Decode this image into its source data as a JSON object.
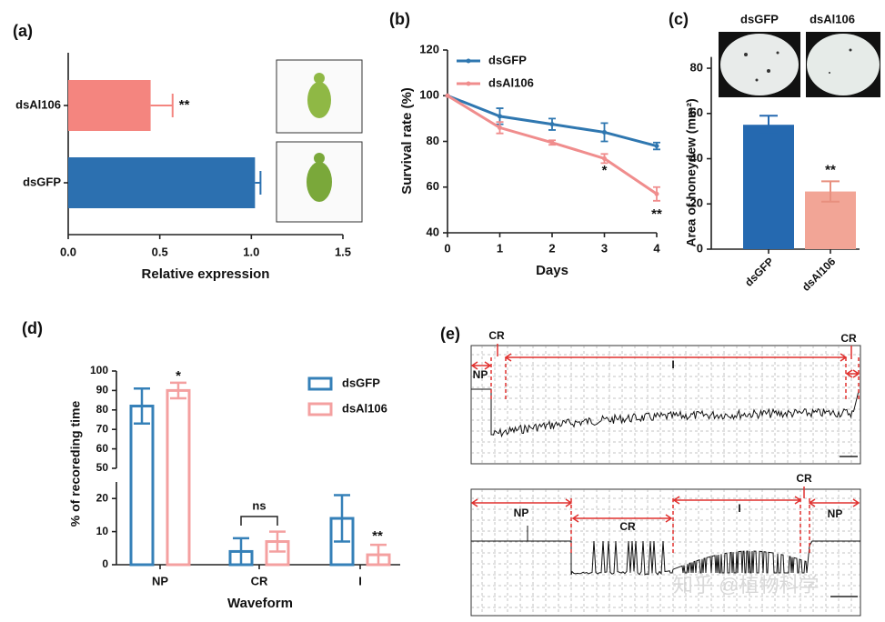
{
  "chart_data": [
    {
      "type": "barh",
      "panel_label": "(a)",
      "xlabel": "Relative expression",
      "categories": [
        "dsAl106",
        "dsGFP"
      ],
      "values": [
        0.45,
        1.02
      ],
      "errors": [
        0.12,
        0.03
      ],
      "colors": [
        "#f4857f",
        "#2c70b0"
      ],
      "xlim": [
        0,
        1.5
      ],
      "xticks": [
        {
          "value": 0,
          "label": "0.0"
        },
        {
          "value": 0.5,
          "label": "0.5"
        },
        {
          "value": 1,
          "label": "1.0"
        },
        {
          "value": 1.5,
          "label": "1.5"
        }
      ],
      "annotations": [
        "**"
      ]
    },
    {
      "type": "line",
      "panel_label": "(b)",
      "xlabel": "Days",
      "ylabel": "Survival rate (%)",
      "x": [
        0,
        1,
        2,
        3,
        4
      ],
      "xlim": [
        0,
        4
      ],
      "xticks": [
        0,
        1,
        2,
        3,
        4
      ],
      "ylim": [
        40,
        120
      ],
      "yticks": [
        40,
        60,
        80,
        100,
        120
      ],
      "series": [
        {
          "name": "dsGFP",
          "color": "#2f77b0",
          "values": [
            100,
            91,
            87.5,
            84,
            78
          ],
          "errors": [
            0,
            3.5,
            2.5,
            4,
            1.5
          ]
        },
        {
          "name": "dsAl106",
          "color": "#f08d8d",
          "values": [
            100,
            86,
            79.5,
            72.5,
            57
          ],
          "errors": [
            0,
            2.5,
            1,
            2,
            3
          ]
        }
      ],
      "annotations": [
        "*",
        "**"
      ]
    },
    {
      "type": "bar",
      "panel_label": "(c)",
      "ylabel": "Area of honeydew (mm²)",
      "image_labels": [
        "dsGFP",
        "dsAl106"
      ],
      "categories": [
        "dsGFP",
        "dsAl106"
      ],
      "values": [
        55,
        25.5
      ],
      "errors": [
        4,
        4.5
      ],
      "colors": [
        "#2569b0",
        "#f2a596"
      ],
      "ylim": [
        0,
        85
      ],
      "yticks": [
        0,
        20,
        40,
        60,
        80
      ],
      "annotations": [
        "**"
      ]
    },
    {
      "type": "grouped_bar",
      "panel_label": "(d)",
      "xlabel": "Waveform",
      "ylabel": "% of recoreding time",
      "categories": [
        "NP",
        "CR",
        "I"
      ],
      "series": [
        {
          "name": "dsGFP",
          "color": "#3580b8",
          "values": [
            82,
            4,
            14
          ],
          "errors": [
            9,
            4,
            7
          ]
        },
        {
          "name": "dsAl106",
          "color": "#f4a0a0",
          "values": [
            90,
            7,
            3
          ],
          "errors": [
            4,
            3,
            3
          ]
        }
      ],
      "ylim": [
        0,
        100
      ],
      "y_break": [
        25,
        50
      ],
      "yticks": [
        0,
        10,
        20,
        50,
        60,
        70,
        80,
        90,
        100
      ],
      "annotations": [
        "*",
        "ns",
        "**"
      ]
    }
  ],
  "panel_e": {
    "panel_label": "(e)",
    "trace_1_labels": [
      "CR",
      "CR",
      "NP",
      "I"
    ],
    "trace_2_labels": [
      "NP",
      "CR",
      "I",
      "CR",
      "NP"
    ]
  },
  "watermark": "知乎 @植物科学"
}
